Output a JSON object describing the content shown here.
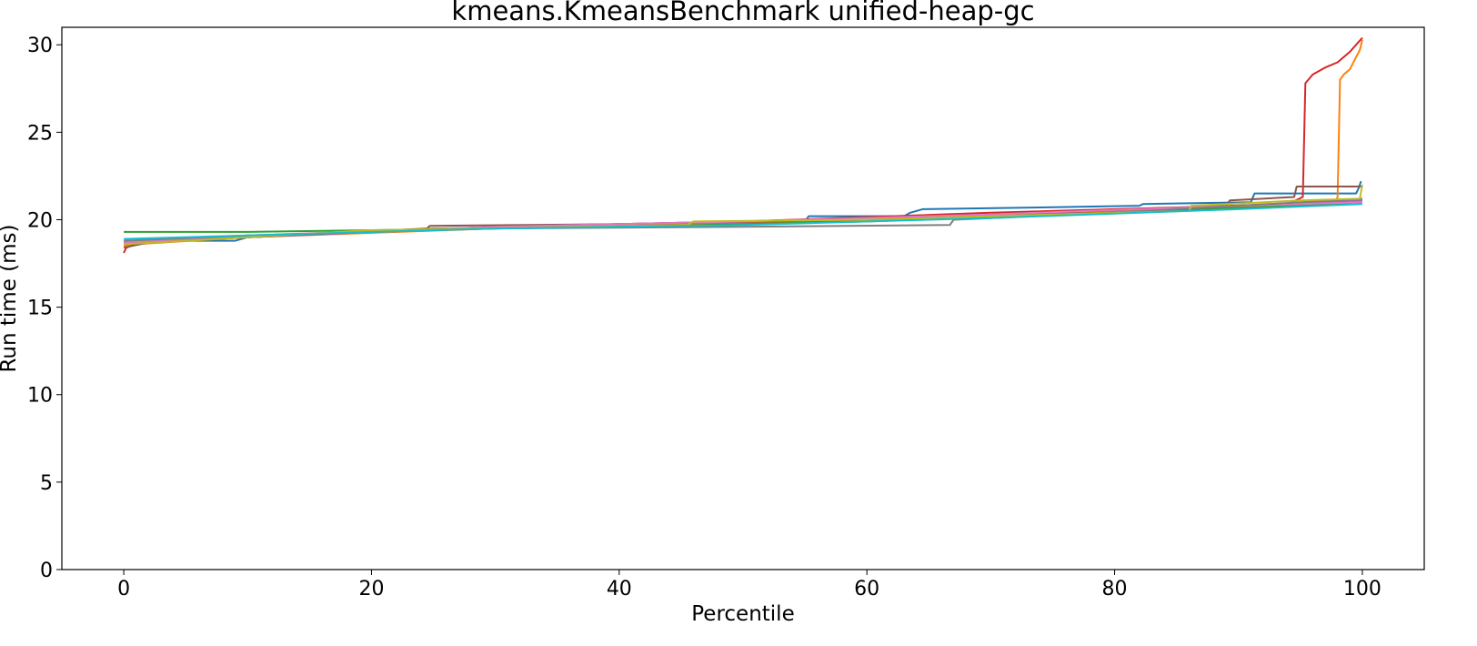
{
  "chart_data": {
    "type": "line",
    "title": "kmeans.KmeansBenchmark unified-heap-gc",
    "xlabel": "Percentile",
    "ylabel": "Run time (ms)",
    "xlim": [
      -5,
      105
    ],
    "ylim": [
      0,
      31
    ],
    "xticks": [
      0,
      20,
      40,
      60,
      80,
      100
    ],
    "yticks": [
      0,
      5,
      10,
      15,
      20,
      25,
      30
    ],
    "xtick_labels": [
      "0",
      "20",
      "40",
      "60",
      "80",
      "100"
    ],
    "ytick_labels": [
      "0",
      "5",
      "10",
      "15",
      "20",
      "25",
      "30"
    ],
    "grid": false,
    "legend": "none",
    "series": [
      {
        "color": "#1f77b4",
        "points": [
          [
            0,
            18.7
          ],
          [
            3,
            18.8
          ],
          [
            9,
            18.8
          ],
          [
            10,
            19.0
          ],
          [
            25,
            19.5
          ],
          [
            45,
            19.7
          ],
          [
            55,
            19.9
          ],
          [
            55.3,
            20.2
          ],
          [
            63,
            20.2
          ],
          [
            63.5,
            20.4
          ],
          [
            64.5,
            20.6
          ],
          [
            74,
            20.7
          ],
          [
            82,
            20.8
          ],
          [
            82.3,
            20.9
          ],
          [
            91,
            21.0
          ],
          [
            91.3,
            21.5
          ],
          [
            99.5,
            21.5
          ],
          [
            99.7,
            21.8
          ],
          [
            99.9,
            22.2
          ]
        ]
      },
      {
        "color": "#ff7f0e",
        "points": [
          [
            0,
            18.5
          ],
          [
            1,
            18.6
          ],
          [
            10,
            19.0
          ],
          [
            30,
            19.5
          ],
          [
            50,
            19.8
          ],
          [
            70,
            20.2
          ],
          [
            90,
            20.7
          ],
          [
            97.8,
            20.9
          ],
          [
            98.0,
            21.3
          ],
          [
            98.2,
            28.0
          ],
          [
            98.5,
            28.3
          ],
          [
            99.0,
            28.6
          ],
          [
            99.5,
            29.3
          ],
          [
            99.8,
            29.7
          ],
          [
            100,
            30.3
          ]
        ]
      },
      {
        "color": "#2ca02c",
        "points": [
          [
            0,
            19.3
          ],
          [
            10,
            19.3
          ],
          [
            20,
            19.4
          ],
          [
            40,
            19.6
          ],
          [
            60,
            19.9
          ],
          [
            80,
            20.4
          ],
          [
            95,
            20.8
          ],
          [
            100,
            21.0
          ]
        ]
      },
      {
        "color": "#d62728",
        "points": [
          [
            0,
            18.1
          ],
          [
            0.2,
            18.4
          ],
          [
            1,
            18.6
          ],
          [
            2.5,
            18.8
          ],
          [
            10,
            19.0
          ],
          [
            30,
            19.6
          ],
          [
            50,
            19.9
          ],
          [
            70,
            20.4
          ],
          [
            85,
            20.7
          ],
          [
            94,
            20.9
          ],
          [
            95.2,
            21.3
          ],
          [
            95.4,
            27.8
          ],
          [
            96,
            28.3
          ],
          [
            97,
            28.7
          ],
          [
            98,
            29.0
          ],
          [
            99,
            29.6
          ],
          [
            99.5,
            30.0
          ],
          [
            100,
            30.4
          ]
        ]
      },
      {
        "color": "#9467bd",
        "points": [
          [
            0,
            18.6
          ],
          [
            10,
            19.0
          ],
          [
            30,
            19.6
          ],
          [
            50,
            19.9
          ],
          [
            70,
            20.3
          ],
          [
            90,
            20.8
          ],
          [
            100,
            21.1
          ]
        ]
      },
      {
        "color": "#8c564b",
        "points": [
          [
            0,
            18.4
          ],
          [
            2,
            18.7
          ],
          [
            10,
            19.0
          ],
          [
            24.5,
            19.5
          ],
          [
            24.7,
            19.65
          ],
          [
            40,
            19.75
          ],
          [
            60,
            20.0
          ],
          [
            72,
            20.3
          ],
          [
            89,
            20.8
          ],
          [
            89.3,
            21.1
          ],
          [
            94.5,
            21.3
          ],
          [
            94.7,
            21.9
          ],
          [
            100,
            21.9
          ]
        ]
      },
      {
        "color": "#e377c2",
        "points": [
          [
            0,
            18.7
          ],
          [
            10,
            19.1
          ],
          [
            30,
            19.6
          ],
          [
            50,
            19.9
          ],
          [
            70,
            20.3
          ],
          [
            90,
            20.8
          ],
          [
            100,
            21.0
          ]
        ]
      },
      {
        "color": "#7f7f7f",
        "points": [
          [
            0,
            18.8
          ],
          [
            10,
            19.1
          ],
          [
            30,
            19.5
          ],
          [
            50,
            19.6
          ],
          [
            66.7,
            19.7
          ],
          [
            67,
            20.0
          ],
          [
            80,
            20.4
          ],
          [
            100,
            21.2
          ]
        ]
      },
      {
        "color": "#bcbd22",
        "points": [
          [
            0,
            18.6
          ],
          [
            5,
            18.8
          ],
          [
            20,
            19.4
          ],
          [
            45.5,
            19.7
          ],
          [
            46,
            19.9
          ],
          [
            60,
            20.0
          ],
          [
            75,
            20.3
          ],
          [
            86,
            20.5
          ],
          [
            86.2,
            20.8
          ],
          [
            95,
            21.1
          ],
          [
            99.8,
            21.2
          ],
          [
            100,
            22.0
          ]
        ]
      },
      {
        "color": "#17becf",
        "points": [
          [
            0,
            18.9
          ],
          [
            10,
            19.1
          ],
          [
            30,
            19.5
          ],
          [
            50,
            19.7
          ],
          [
            70,
            20.1
          ],
          [
            90,
            20.6
          ],
          [
            100,
            20.9
          ]
        ]
      }
    ]
  }
}
